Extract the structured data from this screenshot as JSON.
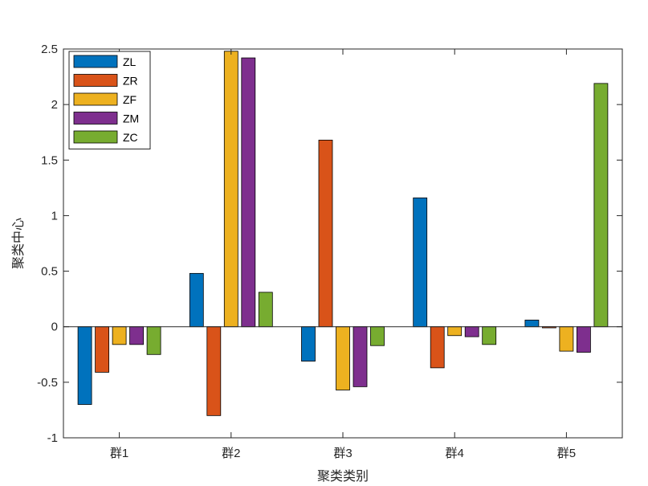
{
  "chart_data": {
    "type": "bar",
    "title": "",
    "xlabel": "聚类类别",
    "ylabel": "聚类中心",
    "categories": [
      "群1",
      "群2",
      "群3",
      "群4",
      "群5"
    ],
    "ylim": [
      -1,
      2.5
    ],
    "yticks": [
      -1,
      -0.5,
      0,
      0.5,
      1,
      1.5,
      2,
      2.5
    ],
    "ytick_labels": [
      "-1",
      "-0.5",
      "0",
      "0.5",
      "1",
      "1.5",
      "2",
      "2.5"
    ],
    "legend_position": "top-left",
    "grid": false,
    "series": [
      {
        "name": "ZL",
        "color": "#0072BD",
        "values": [
          -0.7,
          0.48,
          -0.31,
          1.16,
          0.06
        ]
      },
      {
        "name": "ZR",
        "color": "#D95319",
        "values": [
          -0.41,
          -0.8,
          1.68,
          -0.37,
          -0.01
        ]
      },
      {
        "name": "ZF",
        "color": "#EDB120",
        "values": [
          -0.16,
          2.48,
          -0.57,
          -0.08,
          -0.22
        ]
      },
      {
        "name": "ZM",
        "color": "#7E2F8E",
        "values": [
          -0.16,
          2.42,
          -0.54,
          -0.09,
          -0.23
        ]
      },
      {
        "name": "ZC",
        "color": "#77AC30",
        "values": [
          -0.25,
          0.31,
          -0.17,
          -0.16,
          2.19
        ]
      }
    ]
  }
}
